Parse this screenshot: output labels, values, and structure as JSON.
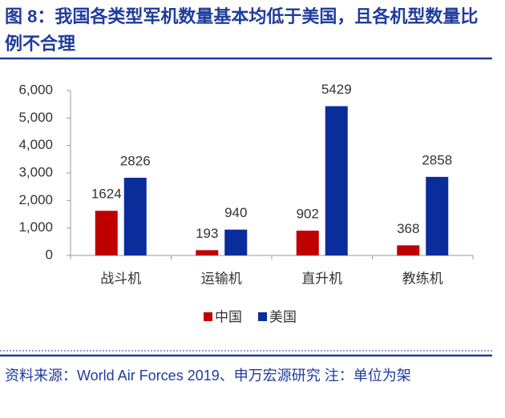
{
  "chart_data": {
    "type": "bar",
    "title": "图 8：我国各类型军机数量基本均低于美国，且各机型数量比例不合理",
    "categories": [
      "战斗机",
      "运输机",
      "直升机",
      "教练机"
    ],
    "series": [
      {
        "name": "中国",
        "color": "#c00000",
        "values": [
          1624,
          193,
          902,
          368
        ]
      },
      {
        "name": "美国",
        "color": "#0a2d9c",
        "values": [
          2826,
          940,
          5429,
          2858
        ]
      }
    ],
    "ylim": [
      0,
      6000
    ],
    "yticks": [
      0,
      {
        "value": 1000,
        "label": "1,000"
      },
      {
        "value": 2000,
        "label": "2,000"
      },
      {
        "value": 3000,
        "label": "3,000"
      },
      {
        "value": 4000,
        "label": "4,000"
      },
      {
        "value": 5000,
        "label": "5,000"
      },
      {
        "value": 6000,
        "label": "6,000"
      }
    ],
    "legend": "bottom",
    "source": "资料来源：World Air Forces 2019、申万宏源研究 注：单位为架"
  }
}
